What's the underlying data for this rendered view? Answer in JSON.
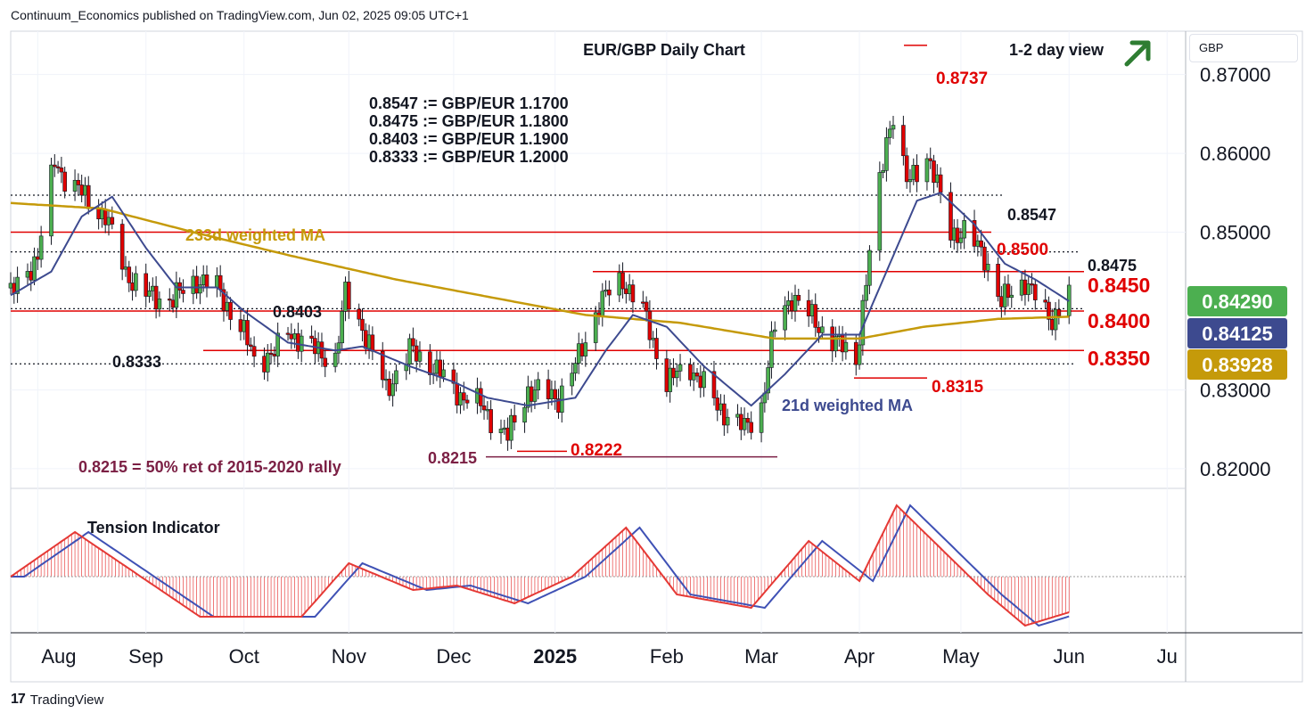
{
  "header": {
    "published": "Continuum_Economics published on TradingView.com, Jun 02, 2025 09:05 UTC+1"
  },
  "footer": {
    "brand": "TradingView",
    "logo_glyph": "17"
  },
  "axis": {
    "currency_label": "GBP"
  },
  "chart_data": {
    "type": "candlestick",
    "title": "EUR/GBP Daily Chart",
    "view_label": "1-2 day view",
    "view_direction": "up",
    "ylim": [
      0.8175,
      0.8755
    ],
    "y_ticks": [
      {
        "value": 0.87,
        "label": "0.87000"
      },
      {
        "value": 0.86,
        "label": "0.86000"
      },
      {
        "value": 0.85,
        "label": "0.85000"
      },
      {
        "value": 0.83,
        "label": "0.83000"
      },
      {
        "value": 0.82,
        "label": "0.82000"
      }
    ],
    "x_ticks": [
      {
        "label": "Aug",
        "date": "2024-08-01",
        "bold": false
      },
      {
        "label": "Sep",
        "date": "2024-09-02",
        "bold": false
      },
      {
        "label": "Oct",
        "date": "2024-10-01",
        "bold": false
      },
      {
        "label": "Nov",
        "date": "2024-11-01",
        "bold": false
      },
      {
        "label": "Dec",
        "date": "2024-12-02",
        "bold": false
      },
      {
        "label": "2025",
        "date": "2025-01-01",
        "bold": true
      },
      {
        "label": "Feb",
        "date": "2025-02-03",
        "bold": false
      },
      {
        "label": "Mar",
        "date": "2025-03-03",
        "bold": false
      },
      {
        "label": "Apr",
        "date": "2025-04-01",
        "bold": false
      },
      {
        "label": "May",
        "date": "2025-05-01",
        "bold": false
      },
      {
        "label": "Jun",
        "date": "2025-06-02",
        "bold": false
      },
      {
        "label": "Ju",
        "date": "2025-07-01",
        "bold": false
      }
    ],
    "closes": [
      {
        "date": "2024-07-24",
        "value": 0.842
      },
      {
        "date": "2024-08-01",
        "value": 0.847
      },
      {
        "date": "2024-08-06",
        "value": 0.859
      },
      {
        "date": "2024-08-09",
        "value": 0.857
      },
      {
        "date": "2024-08-16",
        "value": 0.854
      },
      {
        "date": "2024-08-21",
        "value": 0.852
      },
      {
        "date": "2024-08-27",
        "value": 0.845
      },
      {
        "date": "2024-09-02",
        "value": 0.842
      },
      {
        "date": "2024-09-10",
        "value": 0.8415
      },
      {
        "date": "2024-09-17",
        "value": 0.844
      },
      {
        "date": "2024-09-23",
        "value": 0.843
      },
      {
        "date": "2024-10-01",
        "value": 0.837
      },
      {
        "date": "2024-10-04",
        "value": 0.834
      },
      {
        "date": "2024-10-10",
        "value": 0.8345
      },
      {
        "date": "2024-10-14",
        "value": 0.8375
      },
      {
        "date": "2024-10-22",
        "value": 0.835
      },
      {
        "date": "2024-10-28",
        "value": 0.834
      },
      {
        "date": "2024-10-31",
        "value": 0.842
      },
      {
        "date": "2024-11-05",
        "value": 0.838
      },
      {
        "date": "2024-11-12",
        "value": 0.83
      },
      {
        "date": "2024-11-19",
        "value": 0.835
      },
      {
        "date": "2024-11-26",
        "value": 0.833
      },
      {
        "date": "2024-12-02",
        "value": 0.83
      },
      {
        "date": "2024-12-10",
        "value": 0.828
      },
      {
        "date": "2024-12-18",
        "value": 0.824
      },
      {
        "date": "2024-12-24",
        "value": 0.83
      },
      {
        "date": "2025-01-02",
        "value": 0.829
      },
      {
        "date": "2025-01-08",
        "value": 0.834
      },
      {
        "date": "2025-01-14",
        "value": 0.841
      },
      {
        "date": "2025-01-21",
        "value": 0.844
      },
      {
        "date": "2025-01-27",
        "value": 0.84
      },
      {
        "date": "2025-02-03",
        "value": 0.831
      },
      {
        "date": "2025-02-10",
        "value": 0.833
      },
      {
        "date": "2025-02-18",
        "value": 0.828
      },
      {
        "date": "2025-02-26",
        "value": 0.825
      },
      {
        "date": "2025-03-03",
        "value": 0.828
      },
      {
        "date": "2025-03-07",
        "value": 0.838
      },
      {
        "date": "2025-03-12",
        "value": 0.842
      },
      {
        "date": "2025-03-18",
        "value": 0.839
      },
      {
        "date": "2025-03-25",
        "value": 0.836
      },
      {
        "date": "2025-03-31",
        "value": 0.834
      },
      {
        "date": "2025-04-04",
        "value": 0.847
      },
      {
        "date": "2025-04-09",
        "value": 0.862
      },
      {
        "date": "2025-04-11",
        "value": 0.865
      },
      {
        "date": "2025-04-15",
        "value": 0.856
      },
      {
        "date": "2025-04-21",
        "value": 0.86
      },
      {
        "date": "2025-04-28",
        "value": 0.85
      },
      {
        "date": "2025-05-02",
        "value": 0.85
      },
      {
        "date": "2025-05-08",
        "value": 0.847
      },
      {
        "date": "2025-05-13",
        "value": 0.841
      },
      {
        "date": "2025-05-20",
        "value": 0.844
      },
      {
        "date": "2025-05-26",
        "value": 0.8395
      },
      {
        "date": "2025-05-28",
        "value": 0.839
      },
      {
        "date": "2025-06-02",
        "value": 0.8429
      }
    ],
    "ma21": [
      {
        "date": "2024-07-24",
        "value": 0.842
      },
      {
        "date": "2024-08-05",
        "value": 0.845
      },
      {
        "date": "2024-08-14",
        "value": 0.852
      },
      {
        "date": "2024-08-23",
        "value": 0.8545
      },
      {
        "date": "2024-09-02",
        "value": 0.848
      },
      {
        "date": "2024-09-11",
        "value": 0.843
      },
      {
        "date": "2024-09-23",
        "value": 0.843
      },
      {
        "date": "2024-10-01",
        "value": 0.84
      },
      {
        "date": "2024-10-14",
        "value": 0.836
      },
      {
        "date": "2024-10-28",
        "value": 0.835
      },
      {
        "date": "2024-11-05",
        "value": 0.8355
      },
      {
        "date": "2024-11-19",
        "value": 0.833
      },
      {
        "date": "2024-12-02",
        "value": 0.831
      },
      {
        "date": "2024-12-12",
        "value": 0.829
      },
      {
        "date": "2024-12-24",
        "value": 0.828
      },
      {
        "date": "2025-01-07",
        "value": 0.829
      },
      {
        "date": "2025-01-16",
        "value": 0.835
      },
      {
        "date": "2025-01-24",
        "value": 0.8395
      },
      {
        "date": "2025-02-03",
        "value": 0.838
      },
      {
        "date": "2025-02-14",
        "value": 0.833
      },
      {
        "date": "2025-02-28",
        "value": 0.828
      },
      {
        "date": "2025-03-10",
        "value": 0.832
      },
      {
        "date": "2025-03-21",
        "value": 0.837
      },
      {
        "date": "2025-04-01",
        "value": 0.837
      },
      {
        "date": "2025-04-09",
        "value": 0.845
      },
      {
        "date": "2025-04-18",
        "value": 0.854
      },
      {
        "date": "2025-04-25",
        "value": 0.855
      },
      {
        "date": "2025-05-05",
        "value": 0.851
      },
      {
        "date": "2025-05-14",
        "value": 0.846
      },
      {
        "date": "2025-05-23",
        "value": 0.844
      },
      {
        "date": "2025-06-02",
        "value": 0.84125
      }
    ],
    "ma233": [
      {
        "date": "2024-07-24",
        "value": 0.8537
      },
      {
        "date": "2024-08-20",
        "value": 0.853
      },
      {
        "date": "2024-09-16",
        "value": 0.85
      },
      {
        "date": "2024-10-15",
        "value": 0.847
      },
      {
        "date": "2024-11-15",
        "value": 0.844
      },
      {
        "date": "2024-12-16",
        "value": 0.8415
      },
      {
        "date": "2025-01-10",
        "value": 0.8395
      },
      {
        "date": "2025-02-07",
        "value": 0.8385
      },
      {
        "date": "2025-03-07",
        "value": 0.8365
      },
      {
        "date": "2025-04-01",
        "value": 0.8365
      },
      {
        "date": "2025-04-20",
        "value": 0.838
      },
      {
        "date": "2025-05-12",
        "value": 0.839
      },
      {
        "date": "2025-06-02",
        "value": 0.83928
      }
    ],
    "tension_indicator": {
      "label": "Tension Indicator",
      "values": [
        {
          "date": "2024-07-24",
          "value": 0.0
        },
        {
          "date": "2024-08-12",
          "value": 1.0
        },
        {
          "date": "2024-09-18",
          "value": -0.9
        },
        {
          "date": "2024-10-18",
          "value": -0.9
        },
        {
          "date": "2024-11-01",
          "value": 0.3
        },
        {
          "date": "2024-11-20",
          "value": -0.3
        },
        {
          "date": "2024-12-03",
          "value": -0.2
        },
        {
          "date": "2024-12-20",
          "value": -0.6
        },
        {
          "date": "2025-01-06",
          "value": 0.0
        },
        {
          "date": "2025-01-22",
          "value": 1.1
        },
        {
          "date": "2025-02-06",
          "value": -0.4
        },
        {
          "date": "2025-02-28",
          "value": -0.7
        },
        {
          "date": "2025-03-17",
          "value": 0.8
        },
        {
          "date": "2025-04-01",
          "value": -0.1
        },
        {
          "date": "2025-04-12",
          "value": 1.6
        },
        {
          "date": "2025-05-09",
          "value": -0.4
        },
        {
          "date": "2025-05-20",
          "value": -1.1
        },
        {
          "date": "2025-06-02",
          "value": -0.8
        }
      ]
    },
    "levels": [
      {
        "value": 0.8547,
        "label": "0.8547",
        "color": "#131722",
        "style": "dotted",
        "text_color": "#131722",
        "bold": true
      },
      {
        "value": 0.85,
        "label": "0.8500",
        "color": "#e00000",
        "style": "solid",
        "text_color": "#e00000",
        "bold": true
      },
      {
        "value": 0.8475,
        "label": "0.8475",
        "color": "#131722",
        "style": "dotted",
        "text_color": "#131722",
        "bold": true
      },
      {
        "value": 0.845,
        "label": "0.8450",
        "color": "#e00000",
        "style": "solid",
        "text_color": "#e00000",
        "bold": true
      },
      {
        "value": 0.8403,
        "label": "0.8403",
        "color": "#131722",
        "style": "dotted",
        "text_color": "#131722",
        "bold": true
      },
      {
        "value": 0.84,
        "label": "0.8400",
        "color": "#e00000",
        "style": "solid",
        "text_color": "#e00000",
        "bold": true
      },
      {
        "value": 0.835,
        "label": "0.8350",
        "color": "#e00000",
        "style": "solid",
        "text_color": "#e00000",
        "bold": true
      },
      {
        "value": 0.8333,
        "label": "0.8333",
        "color": "#131722",
        "style": "dotted",
        "text_color": "#131722",
        "bold": true
      },
      {
        "value": 0.8737,
        "label": "0.8737",
        "color": "#e00000",
        "style": "marker",
        "text_color": "#e00000",
        "bold": true
      },
      {
        "value": 0.8315,
        "label": "0.8315",
        "color": "#e00000",
        "style": "marker",
        "text_color": "#e00000",
        "bold": true
      },
      {
        "value": 0.8222,
        "label": "0.8222",
        "color": "#e00000",
        "style": "marker",
        "text_color": "#e00000",
        "bold": true
      },
      {
        "value": 0.8215,
        "label": "0.8215",
        "color": "#7b1f44",
        "style": "marker",
        "text_color": "#7b1f44",
        "bold": true
      }
    ],
    "conversions": [
      "0.8547 := GBP/EUR 1.1700",
      "0.8475 := GBP/EUR 1.1800",
      "0.8403 := GBP/EUR 1.1900",
      "0.8333 := GBP/EUR 1.2000"
    ],
    "annotations": {
      "ma233_label": "233d weighted MA",
      "ma21_label": "21d weighted MA",
      "fib_note": "0.8215 = 50% ret of 2015-2020 rally"
    },
    "price_tags": [
      {
        "value": 0.8429,
        "label": "0.84290",
        "bg": "#4caf50"
      },
      {
        "value": 0.84125,
        "label": "0.84125",
        "bg": "#3d4a8f"
      },
      {
        "value": 0.83928,
        "label": "0.83928",
        "bg": "#c59a0a"
      }
    ],
    "colors": {
      "up": "#4caf50",
      "down": "#e00000",
      "ma21": "#3d4a8f",
      "ma233": "#c59a0a",
      "arrow": "#2e7d32"
    }
  }
}
